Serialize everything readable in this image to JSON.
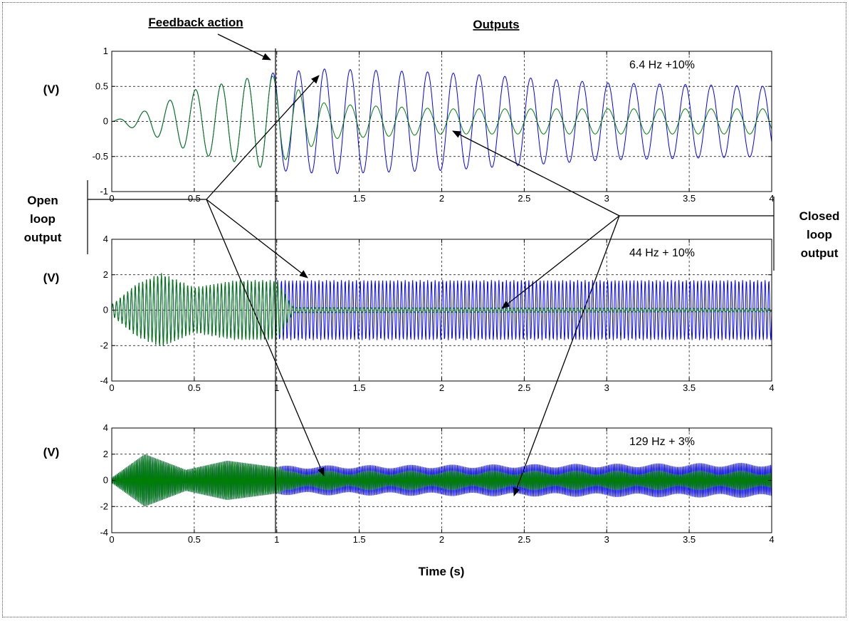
{
  "figure": {
    "title": "Outputs",
    "feedback_label": "Feedback action",
    "open_loop_label": [
      "Open",
      "loop",
      "output"
    ],
    "closed_loop_label": [
      "Closed",
      "loop",
      "output"
    ],
    "xlabel": "Time (s)",
    "colors": {
      "open_loop": "#008000",
      "closed_loop": "#0000ff",
      "axes": "#000000"
    }
  },
  "chart_data": [
    {
      "type": "line",
      "annotation": "6.4 Hz +10%",
      "ylabel": "(V)",
      "xlim": [
        0,
        4
      ],
      "ylim": [
        -1,
        1
      ],
      "xticks": [
        "0",
        "0.5",
        "1",
        "1.5",
        "2",
        "2.5",
        "3",
        "3.5",
        "4"
      ],
      "yticks": [
        "-1",
        "-0.5",
        "0",
        "0.5",
        "1"
      ],
      "grid": true,
      "feedback_time": 1,
      "series": [
        {
          "role": "open loop output",
          "freq_hz": 6.4,
          "envelope": [
            [
              0,
              0
            ],
            [
              0.2,
              0.15
            ],
            [
              0.5,
              0.45
            ],
            [
              0.95,
              0.68
            ],
            [
              1.0,
              0.7
            ],
            [
              1.3,
              0.75
            ],
            [
              2.0,
              0.7
            ],
            [
              3.0,
              0.55
            ],
            [
              4.0,
              0.5
            ]
          ],
          "color": "#0000ff"
        },
        {
          "role": "closed loop output",
          "freq_hz": 6.4,
          "envelope": [
            [
              0,
              0
            ],
            [
              0.2,
              0.15
            ],
            [
              0.5,
              0.45
            ],
            [
              0.95,
              0.68
            ],
            [
              1.05,
              0.55
            ],
            [
              1.3,
              0.25
            ],
            [
              2.0,
              0.18
            ],
            [
              4.0,
              0.18
            ]
          ],
          "color": "#008000"
        }
      ]
    },
    {
      "type": "line",
      "annotation": "44 Hz + 10%",
      "ylabel": "(V)",
      "xlim": [
        0,
        4
      ],
      "ylim": [
        -4,
        4
      ],
      "xticks": [
        "0",
        "0.5",
        "1",
        "1.5",
        "2",
        "2.5",
        "3",
        "3.5",
        "4"
      ],
      "yticks": [
        "-4",
        "-2",
        "0",
        "2",
        "4"
      ],
      "grid": true,
      "feedback_time": 1,
      "series": [
        {
          "role": "open loop output",
          "freq_hz": 44,
          "envelope": [
            [
              0,
              0.3
            ],
            [
              0.15,
              1.5
            ],
            [
              0.3,
              2.1
            ],
            [
              0.5,
              1.3
            ],
            [
              0.75,
              1.7
            ],
            [
              1.0,
              1.7
            ],
            [
              4.0,
              1.7
            ]
          ],
          "color": "#0000ff"
        },
        {
          "role": "closed loop output",
          "freq_hz": 44,
          "envelope": [
            [
              0,
              0.3
            ],
            [
              0.15,
              1.5
            ],
            [
              0.3,
              2.1
            ],
            [
              0.5,
              1.3
            ],
            [
              0.75,
              1.7
            ],
            [
              1.0,
              1.7
            ],
            [
              1.1,
              0.15
            ],
            [
              4.0,
              0.1
            ]
          ],
          "color": "#008000"
        }
      ]
    },
    {
      "type": "line",
      "annotation": "129 Hz + 3%",
      "ylabel": "(V)",
      "xlim": [
        0,
        4
      ],
      "ylim": [
        -4,
        4
      ],
      "xticks": [
        "0",
        "0.5",
        "1",
        "1.5",
        "2",
        "2.5",
        "3",
        "3.5",
        "4"
      ],
      "yticks": [
        "-4",
        "-2",
        "0",
        "2",
        "4"
      ],
      "grid": true,
      "feedback_time": 1,
      "series": [
        {
          "role": "open loop output",
          "freq_hz": 129,
          "envelope": [
            [
              0,
              0.2
            ],
            [
              0.2,
              2.0
            ],
            [
              0.45,
              0.8
            ],
            [
              0.7,
              1.5
            ],
            [
              1.0,
              1.0
            ],
            [
              4.0,
              1.2
            ]
          ],
          "beat_hz": 4,
          "beat_depth": 0.12,
          "color": "#0000ff"
        },
        {
          "role": "closed loop output",
          "freq_hz": 129,
          "envelope": [
            [
              0,
              0.2
            ],
            [
              0.2,
              2.0
            ],
            [
              0.45,
              0.8
            ],
            [
              0.7,
              1.5
            ],
            [
              1.0,
              1.0
            ],
            [
              1.05,
              0.6
            ],
            [
              4.0,
              0.6
            ]
          ],
          "beat_hz": 4,
          "beat_depth": 0.25,
          "color": "#008000"
        }
      ]
    }
  ]
}
